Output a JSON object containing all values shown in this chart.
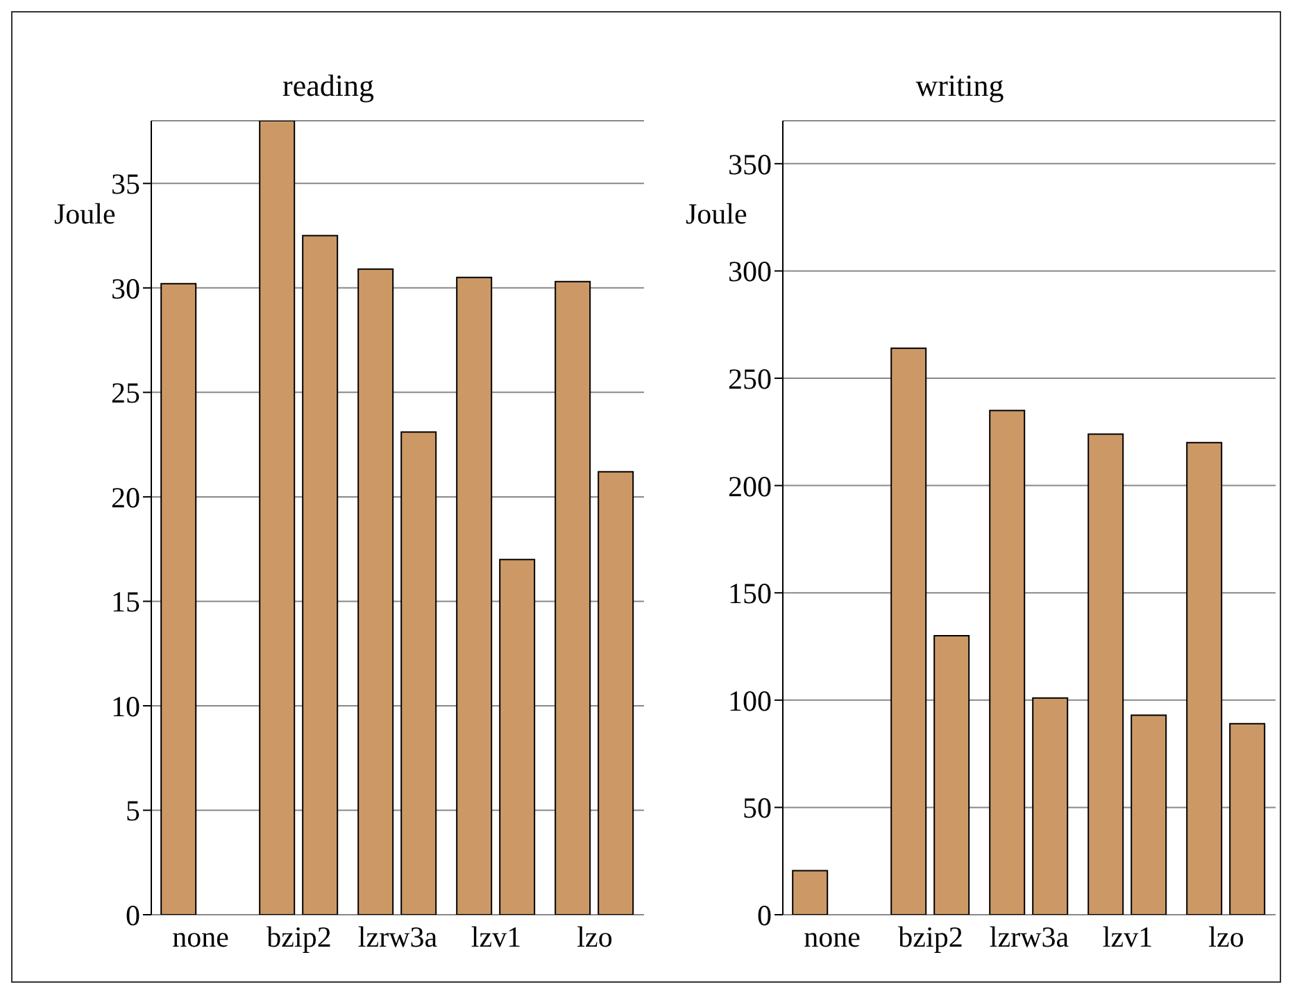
{
  "chart_data": [
    {
      "type": "bar",
      "title": "reading",
      "ylabel": "Joule",
      "categories": [
        "none",
        "bzip2",
        "lzrw3a",
        "lzv1",
        "lzo"
      ],
      "series": [
        {
          "color": "#cc9966",
          "values": [
            30.2,
            38,
            30.9,
            30.5,
            30.3
          ]
        },
        {
          "color": "#cc9966",
          "values": [
            null,
            32.5,
            23.1,
            17,
            21.2
          ]
        }
      ],
      "ylim": [
        0,
        38
      ],
      "yticks": [
        0,
        5,
        10,
        15,
        20,
        25,
        30,
        35
      ],
      "grid": "y"
    },
    {
      "type": "bar",
      "title": "writing",
      "ylabel": "Joule",
      "categories": [
        "none",
        "bzip2",
        "lzrw3a",
        "lzv1",
        "lzo"
      ],
      "series": [
        {
          "color": "#cc9966",
          "values": [
            20.5,
            264,
            235,
            224,
            220
          ]
        },
        {
          "color": "#cc9966",
          "values": [
            null,
            130,
            101,
            93,
            89
          ]
        }
      ],
      "ylim": [
        0,
        370
      ],
      "yticks": [
        0,
        50,
        100,
        150,
        200,
        250,
        300,
        350
      ],
      "grid": "y"
    }
  ]
}
